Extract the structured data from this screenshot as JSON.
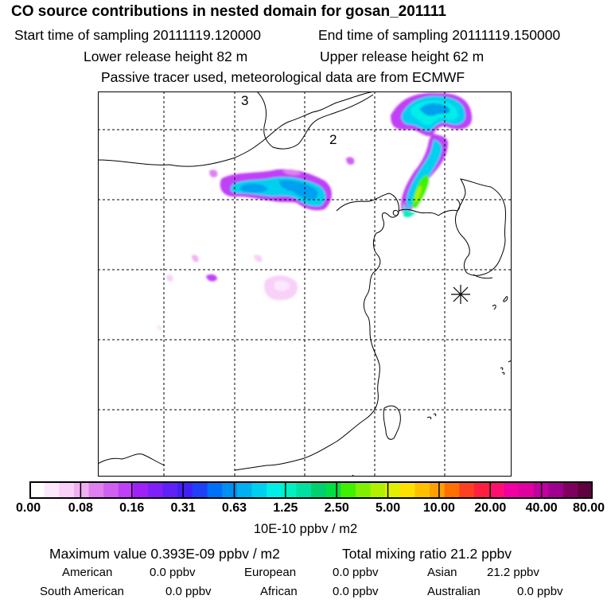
{
  "header": {
    "title": "CO  source contributions in nested domain for gosan_201111",
    "start_label": "Start time of sampling 20111119.120000",
    "end_label": "End time of sampling 20111119.150000",
    "lower_label": "Lower release height   82 m",
    "upper_label": "Upper release height   62 m",
    "note": "Passive tracer used, meteorological data are from ECMWF"
  },
  "map": {
    "region_numbers": [
      "3",
      "2"
    ],
    "receptor_marker": "asterisk-icon",
    "colors": {
      "coast": "#000000",
      "grid": "#000000"
    }
  },
  "colorbar": {
    "unit": "10E-10 ppbv / m2",
    "labels": [
      "0.00",
      "0.08",
      "0.16",
      "0.31",
      "0.63",
      "1.25",
      "2.50",
      "5.00",
      "10.00",
      "20.00",
      "40.00",
      "80.00"
    ],
    "colors": [
      "#ffffff",
      "#fce8fc",
      "#f8d0f8",
      "#f0b0f0",
      "#e080f0",
      "#d060f0",
      "#c040f8",
      "#a020f8",
      "#8020f8",
      "#6020f8",
      "#4020f8",
      "#2040f8",
      "#0070f8",
      "#0090f0",
      "#00b0f0",
      "#00d0f0",
      "#00f0e8",
      "#00f0c0",
      "#00e0a0",
      "#00d070",
      "#00e040",
      "#40f000",
      "#80f000",
      "#b0f000",
      "#e0f000",
      "#ffe000",
      "#ffc000",
      "#ffa000",
      "#ff7000",
      "#ff4020",
      "#ff2040",
      "#ff1070",
      "#f000a0",
      "#e000a0",
      "#c000a0",
      "#a00090",
      "#800060",
      "#600040"
    ]
  },
  "stats": {
    "maximum": "Maximum value  0.393E-09 ppbv / m2",
    "total": "Total mixing ratio       21.2 ppbv",
    "american_label": "American",
    "american_value": "0.0 ppbv",
    "european_label": "European",
    "european_value": "0.0 ppbv",
    "asian_label": "Asian",
    "asian_value": "21.2 ppbv",
    "south_american_label": "South American",
    "south_american_value": "0.0 ppbv",
    "african_label": "African",
    "african_value": "0.0 ppbv",
    "australian_label": "Australian",
    "australian_value": "0.0 ppbv"
  }
}
